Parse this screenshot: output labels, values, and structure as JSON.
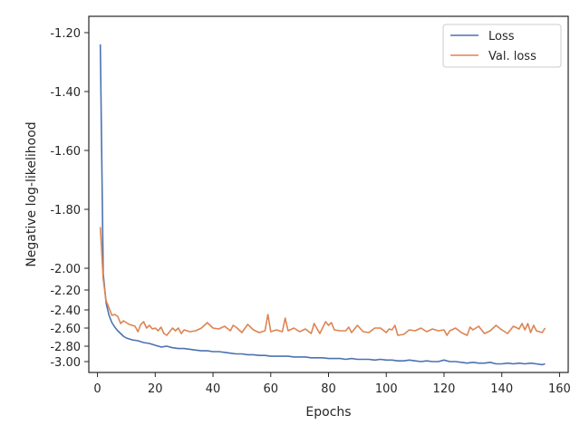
{
  "chart_data": {
    "type": "line",
    "xlabel": "Epochs",
    "ylabel": "Negative log-likelihood",
    "xlim": [
      -3,
      163
    ],
    "xticks": [
      0,
      20,
      40,
      60,
      80,
      100,
      120,
      140,
      160
    ],
    "y_tick_labels": [
      {
        "label": "-1.20",
        "value": -1.2
      },
      {
        "label": "-1.40",
        "value": -1.4
      },
      {
        "label": "-1.60",
        "value": -1.6
      },
      {
        "label": "-1.80",
        "value": -1.8
      },
      {
        "label": "-2.00",
        "value": -2.0
      },
      {
        "label": "-2.20",
        "value": -2.2
      },
      {
        "label": "-2.40",
        "value": -2.4
      },
      {
        "label": "-2.60",
        "value": -2.6
      },
      {
        "label": "-2.80",
        "value": -2.8
      },
      {
        "label": "-3.00",
        "value": -3.0
      }
    ],
    "grid": false,
    "legend_position": "top-right",
    "series": [
      {
        "name": "Loss",
        "color": "#4c72b0",
        "points": [
          [
            1,
            -1.24
          ],
          [
            2,
            -2.05
          ],
          [
            3,
            -2.33
          ],
          [
            4,
            -2.46
          ],
          [
            5,
            -2.54
          ],
          [
            6,
            -2.59
          ],
          [
            7,
            -2.63
          ],
          [
            8,
            -2.66
          ],
          [
            9,
            -2.69
          ],
          [
            10,
            -2.71
          ],
          [
            12,
            -2.73
          ],
          [
            14,
            -2.74
          ],
          [
            16,
            -2.76
          ],
          [
            18,
            -2.77
          ],
          [
            20,
            -2.79
          ],
          [
            22,
            -2.81
          ],
          [
            24,
            -2.8
          ],
          [
            26,
            -2.82
          ],
          [
            28,
            -2.83
          ],
          [
            30,
            -2.83
          ],
          [
            32,
            -2.84
          ],
          [
            34,
            -2.85
          ],
          [
            36,
            -2.86
          ],
          [
            38,
            -2.86
          ],
          [
            40,
            -2.87
          ],
          [
            42,
            -2.87
          ],
          [
            44,
            -2.88
          ],
          [
            46,
            -2.89
          ],
          [
            48,
            -2.9
          ],
          [
            50,
            -2.9
          ],
          [
            52,
            -2.91
          ],
          [
            54,
            -2.91
          ],
          [
            56,
            -2.92
          ],
          [
            58,
            -2.92
          ],
          [
            60,
            -2.93
          ],
          [
            62,
            -2.93
          ],
          [
            64,
            -2.93
          ],
          [
            66,
            -2.93
          ],
          [
            68,
            -2.94
          ],
          [
            70,
            -2.94
          ],
          [
            72,
            -2.94
          ],
          [
            74,
            -2.95
          ],
          [
            76,
            -2.95
          ],
          [
            78,
            -2.95
          ],
          [
            80,
            -2.96
          ],
          [
            82,
            -2.96
          ],
          [
            84,
            -2.96
          ],
          [
            86,
            -2.97
          ],
          [
            88,
            -2.96
          ],
          [
            90,
            -2.97
          ],
          [
            92,
            -2.97
          ],
          [
            94,
            -2.97
          ],
          [
            96,
            -2.98
          ],
          [
            98,
            -2.97
          ],
          [
            100,
            -2.98
          ],
          [
            102,
            -2.98
          ],
          [
            104,
            -2.99
          ],
          [
            106,
            -2.99
          ],
          [
            108,
            -2.98
          ],
          [
            110,
            -2.99
          ],
          [
            112,
            -3.0
          ],
          [
            114,
            -2.99
          ],
          [
            116,
            -3.0
          ],
          [
            118,
            -3.0
          ],
          [
            120,
            -2.98
          ],
          [
            122,
            -3.0
          ],
          [
            124,
            -3.0
          ],
          [
            126,
            -3.01
          ],
          [
            128,
            -3.02
          ],
          [
            130,
            -3.01
          ],
          [
            132,
            -3.02
          ],
          [
            134,
            -3.02
          ],
          [
            136,
            -3.01
          ],
          [
            138,
            -3.03
          ],
          [
            140,
            -3.03
          ],
          [
            142,
            -3.02
          ],
          [
            144,
            -3.03
          ],
          [
            146,
            -3.02
          ],
          [
            148,
            -3.03
          ],
          [
            150,
            -3.02
          ],
          [
            152,
            -3.03
          ],
          [
            154,
            -3.04
          ],
          [
            155,
            -3.03
          ]
        ]
      },
      {
        "name": "Val. loss",
        "color": "#dd8452",
        "points": [
          [
            1,
            -1.86
          ],
          [
            2,
            -2.1
          ],
          [
            3,
            -2.31
          ],
          [
            4,
            -2.38
          ],
          [
            5,
            -2.46
          ],
          [
            6,
            -2.45
          ],
          [
            7,
            -2.47
          ],
          [
            8,
            -2.55
          ],
          [
            9,
            -2.52
          ],
          [
            10,
            -2.54
          ],
          [
            11,
            -2.56
          ],
          [
            12,
            -2.57
          ],
          [
            13,
            -2.58
          ],
          [
            14,
            -2.64
          ],
          [
            15,
            -2.56
          ],
          [
            16,
            -2.53
          ],
          [
            17,
            -2.6
          ],
          [
            18,
            -2.57
          ],
          [
            19,
            -2.61
          ],
          [
            20,
            -2.6
          ],
          [
            21,
            -2.63
          ],
          [
            22,
            -2.59
          ],
          [
            23,
            -2.66
          ],
          [
            24,
            -2.68
          ],
          [
            25,
            -2.64
          ],
          [
            26,
            -2.6
          ],
          [
            27,
            -2.63
          ],
          [
            28,
            -2.6
          ],
          [
            29,
            -2.66
          ],
          [
            30,
            -2.62
          ],
          [
            32,
            -2.64
          ],
          [
            34,
            -2.63
          ],
          [
            36,
            -2.6
          ],
          [
            38,
            -2.54
          ],
          [
            40,
            -2.6
          ],
          [
            42,
            -2.61
          ],
          [
            44,
            -2.58
          ],
          [
            46,
            -2.63
          ],
          [
            47,
            -2.57
          ],
          [
            48,
            -2.59
          ],
          [
            50,
            -2.65
          ],
          [
            52,
            -2.56
          ],
          [
            54,
            -2.62
          ],
          [
            56,
            -2.65
          ],
          [
            58,
            -2.63
          ],
          [
            59,
            -2.45
          ],
          [
            60,
            -2.64
          ],
          [
            62,
            -2.62
          ],
          [
            64,
            -2.64
          ],
          [
            65,
            -2.49
          ],
          [
            66,
            -2.63
          ],
          [
            68,
            -2.6
          ],
          [
            70,
            -2.64
          ],
          [
            72,
            -2.61
          ],
          [
            74,
            -2.66
          ],
          [
            75,
            -2.55
          ],
          [
            77,
            -2.66
          ],
          [
            79,
            -2.53
          ],
          [
            80,
            -2.57
          ],
          [
            81,
            -2.54
          ],
          [
            82,
            -2.62
          ],
          [
            84,
            -2.63
          ],
          [
            86,
            -2.63
          ],
          [
            87,
            -2.59
          ],
          [
            88,
            -2.65
          ],
          [
            90,
            -2.57
          ],
          [
            92,
            -2.64
          ],
          [
            94,
            -2.65
          ],
          [
            96,
            -2.6
          ],
          [
            98,
            -2.6
          ],
          [
            100,
            -2.65
          ],
          [
            101,
            -2.61
          ],
          [
            102,
            -2.62
          ],
          [
            103,
            -2.57
          ],
          [
            104,
            -2.68
          ],
          [
            106,
            -2.67
          ],
          [
            108,
            -2.62
          ],
          [
            110,
            -2.63
          ],
          [
            112,
            -2.6
          ],
          [
            114,
            -2.64
          ],
          [
            116,
            -2.61
          ],
          [
            118,
            -2.63
          ],
          [
            120,
            -2.62
          ],
          [
            121,
            -2.68
          ],
          [
            122,
            -2.63
          ],
          [
            124,
            -2.6
          ],
          [
            126,
            -2.65
          ],
          [
            128,
            -2.68
          ],
          [
            129,
            -2.59
          ],
          [
            130,
            -2.62
          ],
          [
            132,
            -2.58
          ],
          [
            134,
            -2.66
          ],
          [
            136,
            -2.63
          ],
          [
            138,
            -2.57
          ],
          [
            140,
            -2.62
          ],
          [
            142,
            -2.66
          ],
          [
            144,
            -2.58
          ],
          [
            146,
            -2.61
          ],
          [
            147,
            -2.55
          ],
          [
            148,
            -2.62
          ],
          [
            149,
            -2.55
          ],
          [
            150,
            -2.65
          ],
          [
            151,
            -2.57
          ],
          [
            152,
            -2.63
          ],
          [
            154,
            -2.65
          ],
          [
            155,
            -2.6
          ]
        ]
      }
    ]
  }
}
